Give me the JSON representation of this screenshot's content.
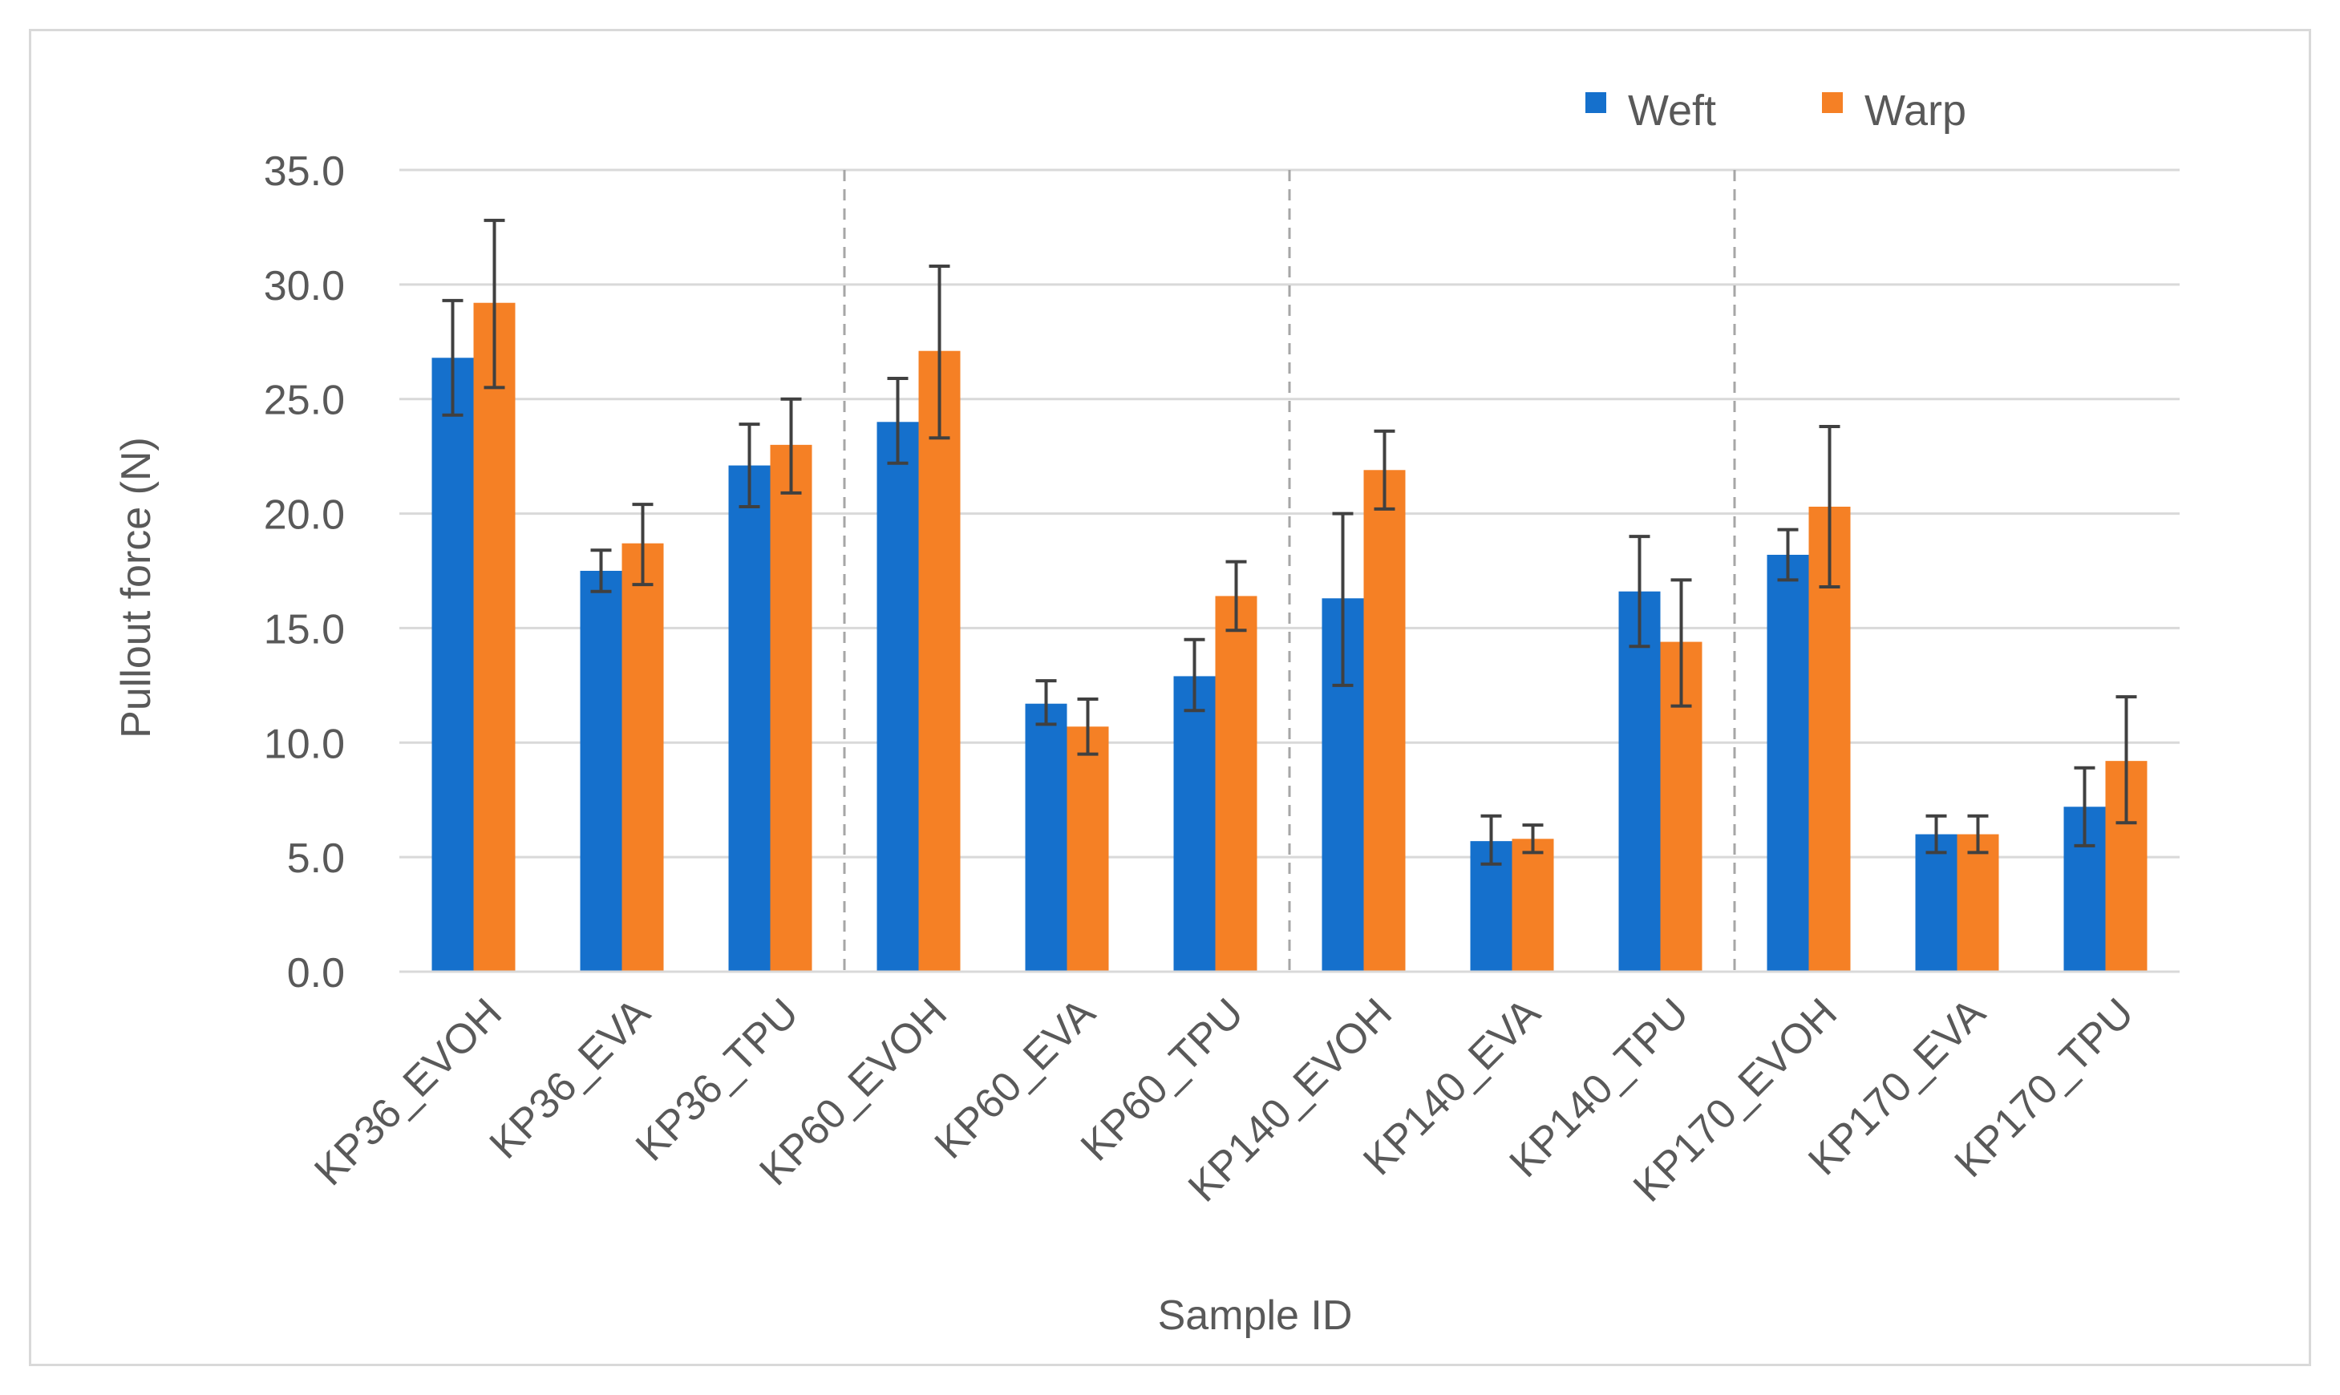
{
  "chart_data": {
    "type": "bar",
    "title": "",
    "xlabel": "Sample ID",
    "ylabel": "Pullout force (N)",
    "ylim": [
      0,
      35
    ],
    "ytick_step": 5,
    "yticks": [
      "0.0",
      "5.0",
      "10.0",
      "15.0",
      "20.0",
      "25.0",
      "30.0",
      "35.0"
    ],
    "grid": "horizontal",
    "legend_position": "top-right",
    "categories": [
      "KP36_EVOH",
      "KP36_EVA",
      "KP36_TPU",
      "KP60_EVOH",
      "KP60_EVA",
      "KP60_TPU",
      "KP140_EVOH",
      "KP140_EVA",
      "KP140_TPU",
      "KP170_EVOH",
      "KP170_EVA",
      "KP170_TPU"
    ],
    "group_separators_after": [
      2,
      5,
      8
    ],
    "series": [
      {
        "name": "Weft",
        "color": "#1570CC",
        "values": [
          26.8,
          17.5,
          22.1,
          24.0,
          11.7,
          12.9,
          16.3,
          5.7,
          16.6,
          18.2,
          6.0,
          7.2
        ],
        "error_low": [
          24.3,
          16.6,
          20.3,
          22.2,
          10.8,
          11.4,
          12.5,
          4.7,
          14.2,
          17.1,
          5.2,
          5.5
        ],
        "error_high": [
          29.3,
          18.4,
          23.9,
          25.9,
          12.7,
          14.5,
          20.0,
          6.8,
          19.0,
          19.3,
          6.8,
          8.9
        ]
      },
      {
        "name": "Warp",
        "color": "#F58025",
        "values": [
          29.2,
          18.7,
          23.0,
          27.1,
          10.7,
          16.4,
          21.9,
          5.8,
          14.4,
          20.3,
          6.0,
          9.2
        ],
        "error_low": [
          25.5,
          16.9,
          20.9,
          23.3,
          9.5,
          14.9,
          20.2,
          5.2,
          11.6,
          16.8,
          5.2,
          6.5
        ],
        "error_high": [
          32.8,
          20.4,
          25.0,
          30.8,
          11.9,
          17.9,
          23.6,
          6.4,
          17.1,
          23.8,
          6.8,
          12.0
        ]
      }
    ]
  }
}
